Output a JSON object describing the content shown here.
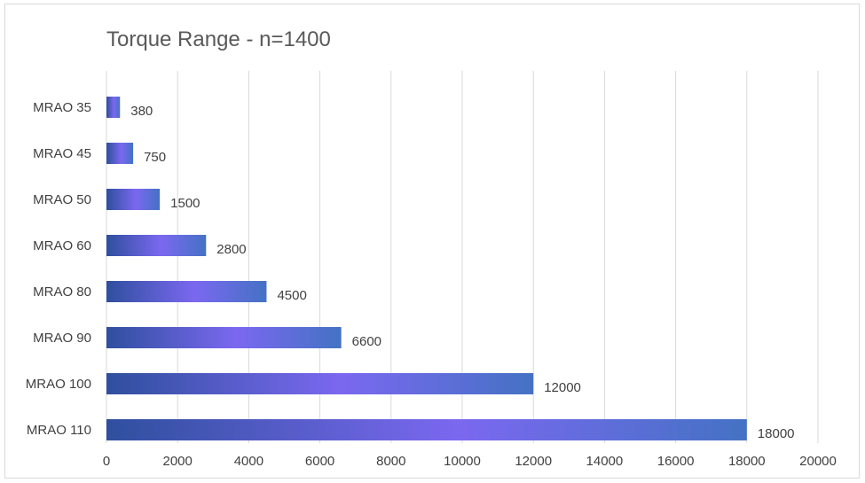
{
  "chart_data": {
    "type": "bar",
    "orientation": "horizontal",
    "title": "Torque Range - n=1400",
    "xlabel": "",
    "ylabel": "",
    "categories": [
      "MRAO 35",
      "MRAO 45",
      "MRAO 50",
      "MRAO 60",
      "MRAO 80",
      "MRAO 90",
      "MRAO 100",
      "MRAO 110"
    ],
    "values": [
      380,
      750,
      1500,
      2800,
      4500,
      6600,
      12000,
      18000
    ],
    "xlim": [
      0,
      20000
    ],
    "xticks": [
      0,
      2000,
      4000,
      6000,
      8000,
      10000,
      12000,
      14000,
      16000,
      18000,
      20000
    ],
    "grid": true,
    "legend": "none",
    "data_labels": true,
    "colors": {
      "gradient_start": "#2f4f9e",
      "gradient_mid": "#7b68f0",
      "gradient_end": "#4472c4",
      "grid": "#d9d9d9",
      "text": "#404040"
    }
  }
}
